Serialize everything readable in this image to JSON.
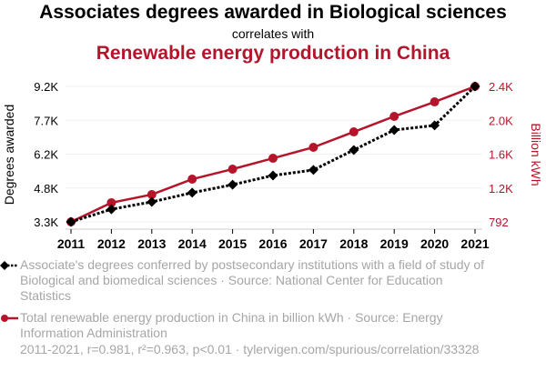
{
  "header": {
    "title": "Associates degrees awarded in Biological sciences",
    "subtitle": "correlates with",
    "title2": "Renewable energy production in China"
  },
  "colors": {
    "series1": "#000000",
    "series2": "#b5152b",
    "gridline": "#f0f0f0",
    "legend_text": "#a6a6a6"
  },
  "chart_data": {
    "type": "line",
    "title": "Associates degrees awarded in Biological sciences correlates with Renewable energy production in China",
    "x": [
      2011,
      2012,
      2013,
      2014,
      2015,
      2016,
      2017,
      2018,
      2019,
      2020,
      2021
    ],
    "x_tick_labels": [
      "2011",
      "2012",
      "2013",
      "2014",
      "2015",
      "2016",
      "2017",
      "2018",
      "2019",
      "2020",
      "2021"
    ],
    "ylabel_left": "Degrees awarded",
    "ylabel_right": "Billion kWh",
    "ylim_left": [
      3300,
      9200
    ],
    "ylim_right": [
      792,
      2400
    ],
    "y_ticks_left": [
      3300,
      4775,
      6250,
      7725,
      9200
    ],
    "y_tick_labels_left": [
      "3.3K",
      "4.8K",
      "6.2K",
      "7.7K",
      "9.2K"
    ],
    "y_ticks_right": [
      792,
      1194,
      1596,
      1998,
      2400
    ],
    "y_tick_labels_right": [
      "792",
      "1.2K",
      "1.6K",
      "2.0K",
      "2.4K"
    ],
    "grid": true,
    "series": [
      {
        "name": "Associate's degrees conferred by postsecondary institutions with a field of study of Biological and biomedical sciences",
        "axis": "left",
        "style": "dotted",
        "marker": "diamond",
        "color": "#000000",
        "values": [
          3300,
          3850,
          4170,
          4570,
          4920,
          5320,
          5560,
          6430,
          7300,
          7500,
          9200
        ]
      },
      {
        "name": "Total renewable energy production in China in billion kWh",
        "axis": "right",
        "style": "solid",
        "marker": "circle",
        "color": "#b5152b",
        "values": [
          792,
          1019,
          1116,
          1299,
          1418,
          1547,
          1677,
          1860,
          2044,
          2216,
          2400
        ]
      }
    ]
  },
  "legend": {
    "item1": "Associate's degrees conferred by postsecondary institutions with a field of study of Biological and biomedical sciences · Source: National Center for Education Statistics",
    "item2": "Total renewable energy production in China in billion kWh · Source: Energy Information Administration"
  },
  "footer": "2011-2021, r=0.981, r²=0.963, p<0.01 · tylervigen.com/spurious/correlation/33328"
}
